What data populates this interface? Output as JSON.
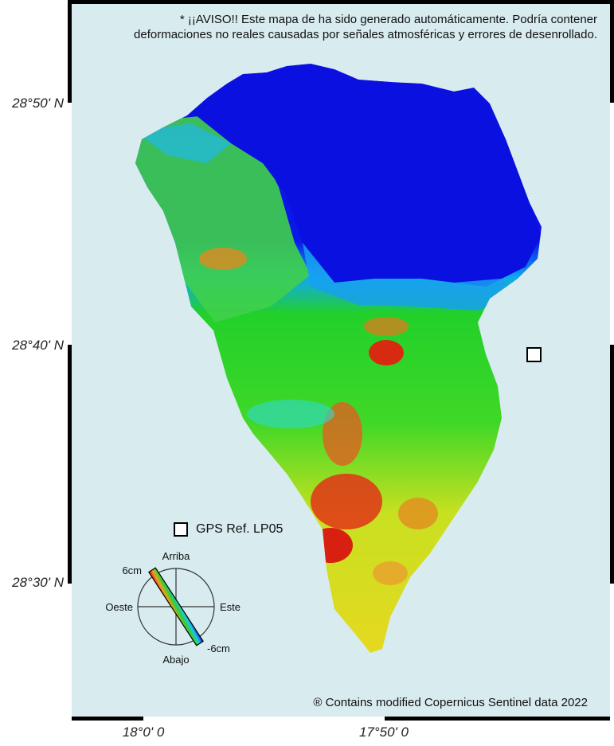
{
  "warning": {
    "line1": "* ¡¡AVISO!! Este mapa de ha sido generado automáticamente. Podría contener",
    "line2": "deformaciones no reales causadas por señales atmosféricas y errores de desenrollado."
  },
  "latitude_labels": [
    "28°50' N",
    "28°40' N",
    "28°30' N"
  ],
  "longitude_labels": [
    "18°0' 0",
    "17°50' 0"
  ],
  "legend": {
    "gps_label": "GPS Ref. LP05",
    "compass": {
      "up": "Arriba",
      "down": "Abajo",
      "west": "Oeste",
      "east": "Este",
      "max": "6cm",
      "min": "-6cm"
    }
  },
  "credit": "® Contains modified Copernicus Sentinel data 2022",
  "colors": {
    "ocean": "#d8ebee",
    "frame": "#000000",
    "scale_high": "#e01010",
    "scale_mid": "#22d02a",
    "scale_low": "#0a10e0"
  }
}
